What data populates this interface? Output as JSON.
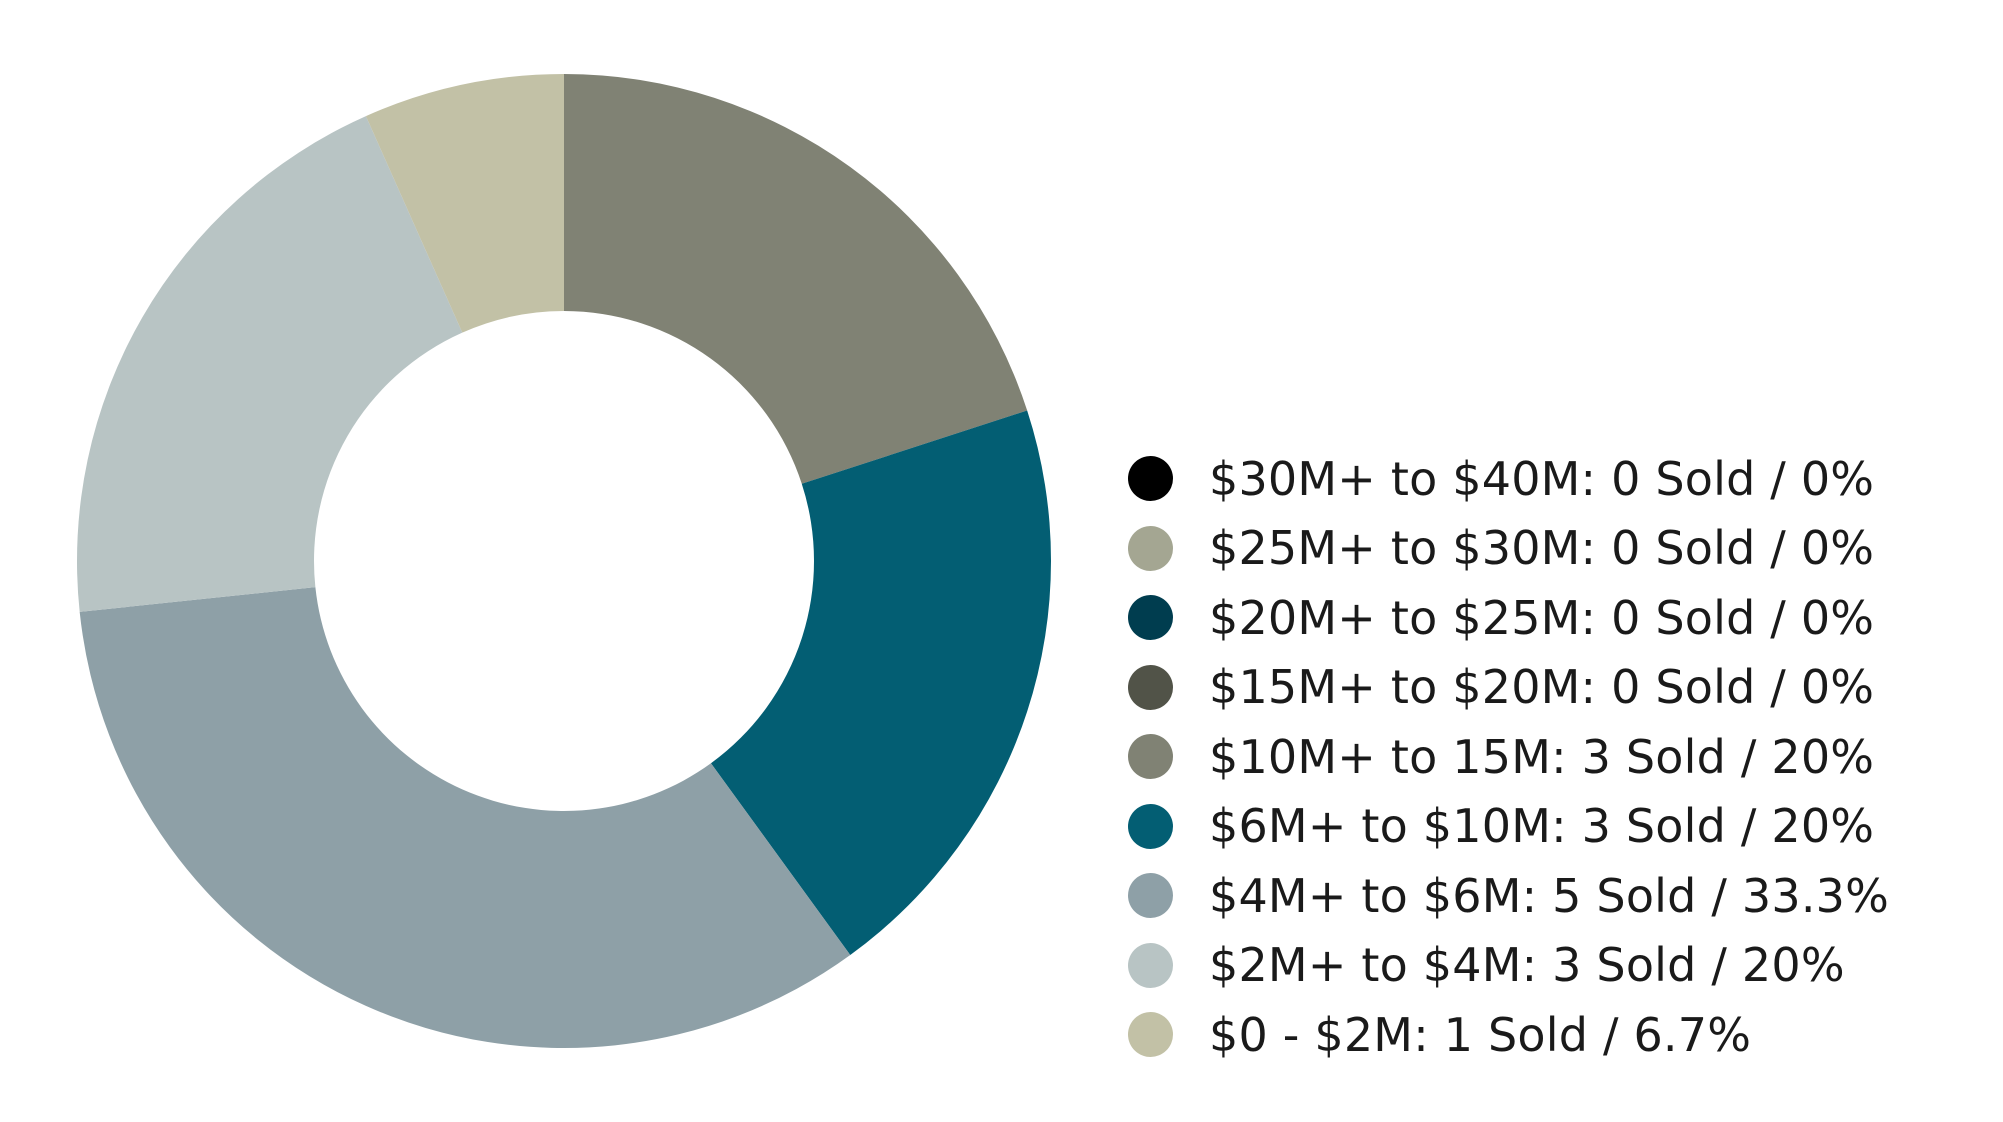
{
  "chart_data": {
    "type": "pie",
    "variant": "donut",
    "title": "",
    "unit": "Sold",
    "slices": [
      {
        "label": "$30M+ to $40M",
        "sold": 0,
        "percent": 0,
        "color": "#000000",
        "legend_text": "$30M+ to $40M: 0 Sold / 0%"
      },
      {
        "label": "$25M+ to $30M",
        "sold": 0,
        "percent": 0,
        "color": "#a4a692",
        "legend_text": "$25M+ to $30M: 0 Sold / 0%"
      },
      {
        "label": "$20M+ to $25M",
        "sold": 0,
        "percent": 0,
        "color": "#003d4f",
        "legend_text": "$20M+ to $25M: 0 Sold / 0%"
      },
      {
        "label": "$15M+ to $20M",
        "sold": 0,
        "percent": 0,
        "color": "#515348",
        "legend_text": "$15M+ to $20M: 0 Sold / 0%"
      },
      {
        "label": "$10M+ to 15M",
        "sold": 3,
        "percent": 20,
        "color": "#808274",
        "legend_text": "$10M+ to 15M: 3 Sold / 20%"
      },
      {
        "label": "$6M+ to $10M",
        "sold": 3,
        "percent": 20,
        "color": "#035e73",
        "legend_text": "$6M+ to $10M: 3 Sold / 20%"
      },
      {
        "label": "$4M+ to $6M",
        "sold": 5,
        "percent": 33.3,
        "color": "#8ea0a7",
        "legend_text": "$4M+ to $6M: 5 Sold / 33.3%"
      },
      {
        "label": "$2M+ to $4M",
        "sold": 3,
        "percent": 20,
        "color": "#b8c4c4",
        "legend_text": "$2M+ to $4M: 3 Sold / 20%"
      },
      {
        "label": "$0 - $2M",
        "sold": 1,
        "percent": 6.7,
        "color": "#c2c1a6",
        "legend_text": "$0 - $2M: 1 Sold / 6.7%"
      }
    ],
    "legend_position": "right"
  }
}
